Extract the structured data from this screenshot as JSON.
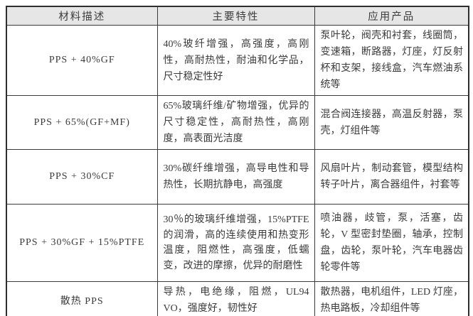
{
  "table": {
    "headers": {
      "material": "材料描述",
      "features": "主要特性",
      "applications": "应用产品"
    },
    "rows": [
      {
        "material": "PPS + 40%GF",
        "features": "40%玻纤增强，高强度，高刚性，高耐热性，耐油和化学品，尺寸稳定性好",
        "applications": "泵叶轮，阀壳和衬套，线圈筒，变速箱，断路器，灯座，灯反射杯和支架，接线盒，汽车燃油系统等"
      },
      {
        "material": "PPS + 65%(GF+MF)",
        "features": "65%玻璃纤维/矿物增强，优异的尺寸稳定性，高耐热性，高刚度，高表面光洁度",
        "applications": "混合阀连接器，高温反射器，泵壳，灯组件等"
      },
      {
        "material": "PPS + 30%CF",
        "features": "30%碳纤维增强，高导电性和导热性，长期抗静电，高强度",
        "applications": "风扇叶片，制动套管，模型结构转子叶片，离合器组件，衬套等"
      },
      {
        "material": "PPS + 30%GF + 15%PTFE",
        "features": "30％的玻璃纤维增强，15%PTFE 的润滑，高的连续使用和热变形温度，阻燃性，高强度，低蠕变，改进的摩擦，优异的耐磨性",
        "applications": "喷油器，歧管，泵，活塞，齿轮，V 型密封垫圈，轴承，控制盘，齿轮，泵叶轮，汽车电器齿轮零件等"
      },
      {
        "material": "散热 PPS",
        "features": "导热，电绝缘，阻燃，UL94 VO，强度好，韧性好",
        "applications": "散热器，电机组件，LED 灯座，热电路板，冷却组件等"
      }
    ]
  }
}
